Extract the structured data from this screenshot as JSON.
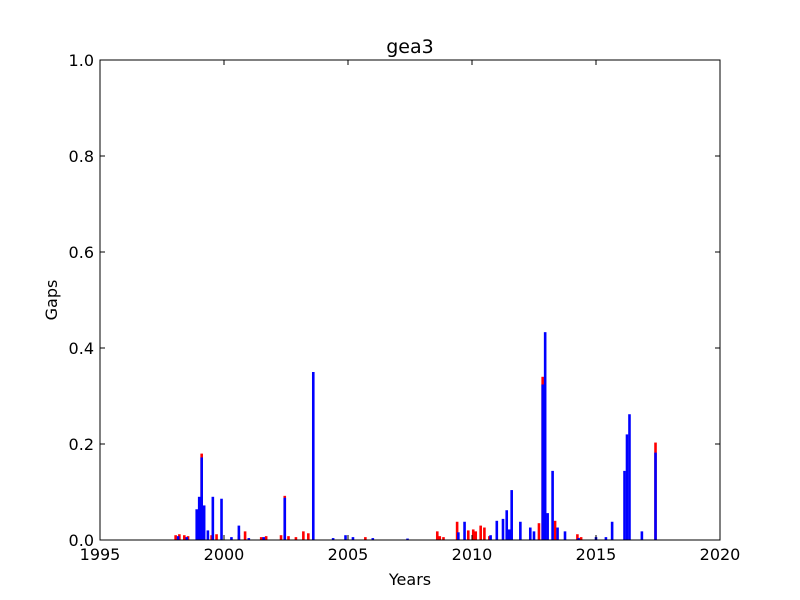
{
  "chart_data": {
    "type": "bar",
    "title": "gea3",
    "xlabel": "Years",
    "ylabel": "Gaps",
    "xlim": [
      1995,
      2020
    ],
    "ylim": [
      0.0,
      1.0
    ],
    "xticks": [
      1995,
      2000,
      2005,
      2010,
      2015,
      2020
    ],
    "yticks": [
      0.0,
      0.2,
      0.4,
      0.6,
      0.8,
      1.0
    ],
    "xtick_labels": [
      "1995",
      "2000",
      "2005",
      "2010",
      "2015",
      "2020"
    ],
    "ytick_labels": [
      "0.0",
      "0.2",
      "0.4",
      "0.6",
      "0.8",
      "1.0"
    ],
    "grid": false,
    "series": [
      {
        "color": "#ff0000",
        "points": [
          {
            "x": 1998.05,
            "y": 0.01
          },
          {
            "x": 1998.2,
            "y": 0.012
          },
          {
            "x": 1998.4,
            "y": 0.01
          },
          {
            "x": 1998.55,
            "y": 0.008
          },
          {
            "x": 1999.1,
            "y": 0.18
          },
          {
            "x": 1999.5,
            "y": 0.01
          },
          {
            "x": 1999.7,
            "y": 0.012
          },
          {
            "x": 2000.6,
            "y": 0.01
          },
          {
            "x": 2000.85,
            "y": 0.018
          },
          {
            "x": 2001.5,
            "y": 0.006
          },
          {
            "x": 2001.7,
            "y": 0.008
          },
          {
            "x": 2002.3,
            "y": 0.01
          },
          {
            "x": 2002.45,
            "y": 0.092
          },
          {
            "x": 2002.6,
            "y": 0.008
          },
          {
            "x": 2002.9,
            "y": 0.006
          },
          {
            "x": 2003.2,
            "y": 0.018
          },
          {
            "x": 2003.4,
            "y": 0.014
          },
          {
            "x": 2005.7,
            "y": 0.006
          },
          {
            "x": 2008.6,
            "y": 0.018
          },
          {
            "x": 2008.7,
            "y": 0.008
          },
          {
            "x": 2008.85,
            "y": 0.006
          },
          {
            "x": 2009.4,
            "y": 0.038
          },
          {
            "x": 2009.85,
            "y": 0.02
          },
          {
            "x": 2010.05,
            "y": 0.022
          },
          {
            "x": 2010.15,
            "y": 0.018
          },
          {
            "x": 2010.35,
            "y": 0.03
          },
          {
            "x": 2010.5,
            "y": 0.026
          },
          {
            "x": 2010.7,
            "y": 0.008
          },
          {
            "x": 2012.7,
            "y": 0.035
          },
          {
            "x": 2012.85,
            "y": 0.34
          },
          {
            "x": 2013.35,
            "y": 0.04
          },
          {
            "x": 2014.25,
            "y": 0.012
          },
          {
            "x": 2014.4,
            "y": 0.006
          },
          {
            "x": 2017.4,
            "y": 0.203
          }
        ]
      },
      {
        "color": "#0000ff",
        "points": [
          {
            "x": 1998.15,
            "y": 0.008
          },
          {
            "x": 1998.5,
            "y": 0.006
          },
          {
            "x": 1998.9,
            "y": 0.064
          },
          {
            "x": 1999.0,
            "y": 0.09
          },
          {
            "x": 1999.1,
            "y": 0.172
          },
          {
            "x": 1999.2,
            "y": 0.072
          },
          {
            "x": 1999.35,
            "y": 0.02
          },
          {
            "x": 1999.55,
            "y": 0.09
          },
          {
            "x": 1999.9,
            "y": 0.086
          },
          {
            "x": 2000.3,
            "y": 0.006
          },
          {
            "x": 2000.6,
            "y": 0.03
          },
          {
            "x": 2001.0,
            "y": 0.004
          },
          {
            "x": 2001.6,
            "y": 0.006
          },
          {
            "x": 2002.45,
            "y": 0.088
          },
          {
            "x": 2003.6,
            "y": 0.35
          },
          {
            "x": 2004.4,
            "y": 0.004
          },
          {
            "x": 2004.9,
            "y": 0.01
          },
          {
            "x": 2005.2,
            "y": 0.006
          },
          {
            "x": 2006.0,
            "y": 0.004
          },
          {
            "x": 2007.4,
            "y": 0.003
          },
          {
            "x": 2009.45,
            "y": 0.016
          },
          {
            "x": 2009.7,
            "y": 0.038
          },
          {
            "x": 2010.75,
            "y": 0.01
          },
          {
            "x": 2011.0,
            "y": 0.04
          },
          {
            "x": 2011.25,
            "y": 0.044
          },
          {
            "x": 2011.4,
            "y": 0.062
          },
          {
            "x": 2011.5,
            "y": 0.022
          },
          {
            "x": 2011.6,
            "y": 0.104
          },
          {
            "x": 2011.95,
            "y": 0.038
          },
          {
            "x": 2012.35,
            "y": 0.026
          },
          {
            "x": 2012.5,
            "y": 0.018
          },
          {
            "x": 2012.85,
            "y": 0.324
          },
          {
            "x": 2012.95,
            "y": 0.433
          },
          {
            "x": 2013.05,
            "y": 0.056
          },
          {
            "x": 2013.25,
            "y": 0.144
          },
          {
            "x": 2013.45,
            "y": 0.026
          },
          {
            "x": 2013.75,
            "y": 0.018
          },
          {
            "x": 2014.3,
            "y": 0.004
          },
          {
            "x": 2015.0,
            "y": 0.006
          },
          {
            "x": 2015.4,
            "y": 0.006
          },
          {
            "x": 2015.65,
            "y": 0.038
          },
          {
            "x": 2016.15,
            "y": 0.144
          },
          {
            "x": 2016.25,
            "y": 0.22
          },
          {
            "x": 2016.35,
            "y": 0.262
          },
          {
            "x": 2016.85,
            "y": 0.018
          },
          {
            "x": 2017.4,
            "y": 0.182
          }
        ]
      }
    ]
  }
}
